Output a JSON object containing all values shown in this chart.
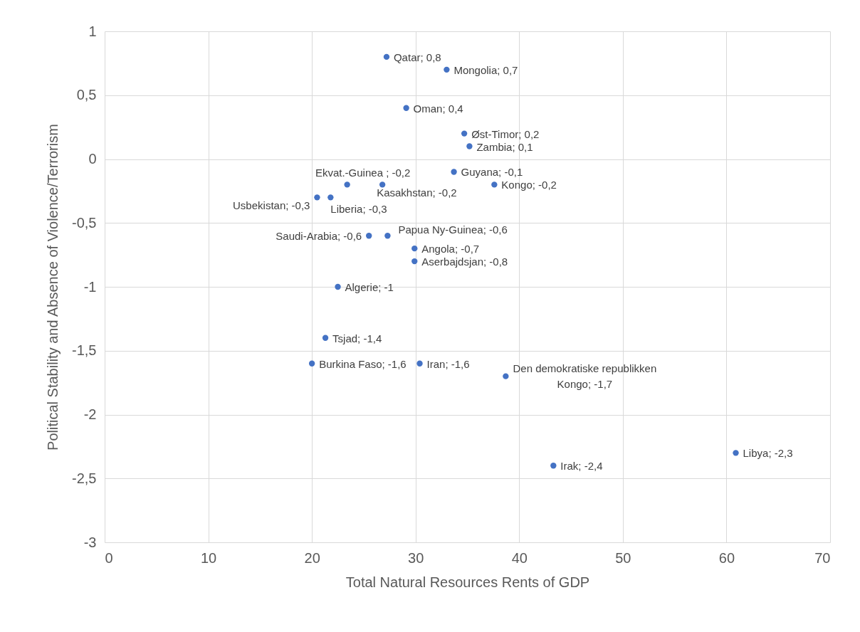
{
  "chart_data": {
    "type": "scatter",
    "xlabel": "Total Natural Resources Rents of GDP",
    "ylabel": "Political Stability and Absence of Violence/Terrorism",
    "x": [
      27.2,
      33.0,
      29.1,
      34.7,
      35.2,
      33.7,
      37.6,
      23.4,
      26.8,
      20.5,
      21.8,
      25.5,
      27.3,
      29.9,
      29.9,
      22.5,
      21.3,
      20.0,
      30.4,
      38.7,
      43.3,
      60.9
    ],
    "values": [
      0.8,
      0.7,
      0.4,
      0.2,
      0.1,
      -0.1,
      -0.2,
      -0.2,
      -0.2,
      -0.3,
      -0.3,
      -0.6,
      -0.6,
      -0.7,
      -0.8,
      -1,
      -1.4,
      -1.6,
      -1.6,
      -1.7,
      -2.4,
      -2.3
    ],
    "value_labels": [
      "Qatar; 0,8",
      "Mongolia; 0,7",
      "Oman; 0,4",
      "Øst-Timor; 0,2",
      "Zambia; 0,1",
      "Guyana; -0,1",
      "Kongo; -0,2",
      "Ekvat.-Guinea ; -0,2",
      "Kasakhstan; -0,2",
      "Usbekistan; -0,3",
      "Liberia; -0,3",
      "Saudi-Arabia; -0,6",
      "Papua Ny-Guinea; -0,6",
      "Angola; -0,7",
      "Aserbajdsjan; -0,8",
      "Algerie; -1",
      "Tsjad; -1,4",
      "Burkina Faso; -1,6",
      "Iran; -1,6",
      "Den demokratiske republikken Kongo; -1,7",
      "Irak; -2,4",
      "Libya; -2,3"
    ],
    "color": "#4472c4",
    "marker": "circle",
    "xlim": [
      0,
      70
    ],
    "xticks": [
      0,
      10,
      20,
      30,
      40,
      50,
      60,
      70
    ],
    "ylim": [
      -3,
      1
    ],
    "yticks": [
      1,
      {
        "value": 0.5,
        "label": "0,5"
      },
      0,
      {
        "value": -0.5,
        "label": "-0,5"
      },
      -1,
      {
        "value": -1.5,
        "label": "-1,5"
      },
      -2,
      {
        "value": -2.5,
        "label": "-2,5"
      },
      -3
    ],
    "grid": true
  }
}
